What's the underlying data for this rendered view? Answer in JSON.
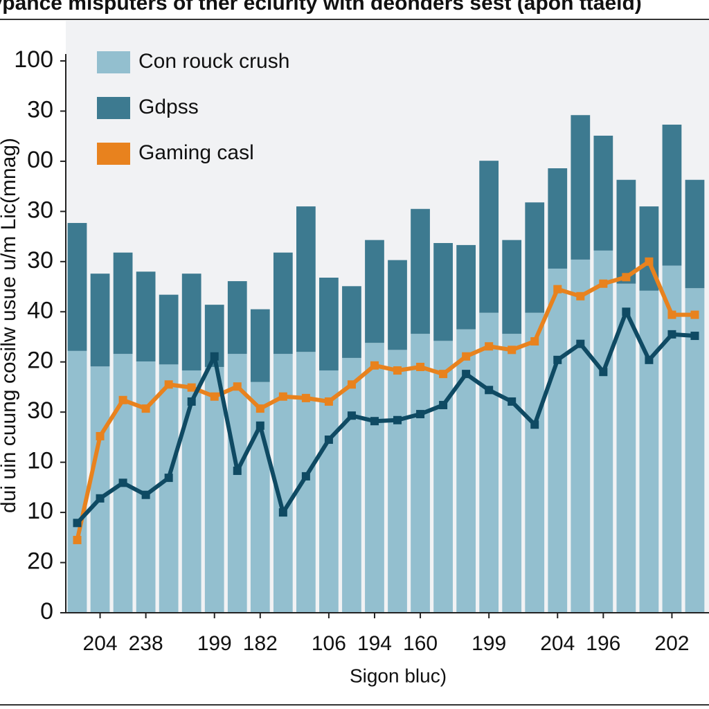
{
  "chart_data": {
    "type": "bar",
    "title": "sevpance misputers of ther eclurity with deonders sest (apon ttaeld)",
    "ylabel": "dui uin cuung cosilw usue u/m Lic(mnag)",
    "xlabel": "Sigon bluc)",
    "categories": [
      null,
      "204",
      null,
      "238",
      null,
      null,
      "199",
      null,
      "182",
      null,
      null,
      "106",
      null,
      "194",
      null,
      "160",
      null,
      null,
      "199",
      null,
      null,
      "204",
      null,
      "196",
      null,
      null,
      "202",
      null
    ],
    "ylim": [
      0,
      110
    ],
    "yticks": [
      0,
      {
        "value": 10,
        "label": "20"
      },
      {
        "value": 20,
        "label": "10"
      },
      {
        "value": 30,
        "label": "10"
      },
      {
        "value": 40,
        "label": "30"
      },
      {
        "value": 50,
        "label": "20"
      },
      {
        "value": 60,
        "label": "40"
      },
      {
        "value": 70,
        "label": "30"
      },
      {
        "value": 80,
        "label": "30"
      },
      {
        "value": 90,
        "label": "00"
      },
      {
        "value": 100,
        "label": "30"
      },
      {
        "value": 110,
        "label": "100"
      }
    ],
    "stacked": true,
    "legend": "upper left",
    "series": [
      {
        "name": "Con rouck crush",
        "type": "bar",
        "color": "#93bfcf",
        "values": [
          52.2,
          49.1,
          51.6,
          50.1,
          49.5,
          48.3,
          49,
          51.6,
          46,
          51.6,
          52,
          48.3,
          50.8,
          53.8,
          52.4,
          55.6,
          54.2,
          56.5,
          59.8,
          55.6,
          59.8,
          68.6,
          70.4,
          72.2,
          65.6,
          64.2,
          69.2,
          64.7
        ]
      },
      {
        "name": "Gdpss",
        "type": "bar",
        "color": "#3d7a90",
        "values": [
          25.5,
          18.5,
          20.2,
          17.9,
          13.9,
          19.3,
          12.4,
          14.5,
          14.5,
          20.2,
          29,
          18.5,
          14.3,
          20.5,
          17.9,
          24.9,
          19.5,
          16.8,
          30.3,
          18.7,
          22,
          20,
          28.8,
          22.9,
          20.7,
          16.8,
          28.1,
          21.6
        ]
      },
      {
        "name": "Gaming casl",
        "type": "line",
        "color": "#e8821e",
        "values": [
          14.5,
          35.2,
          42.4,
          40.7,
          45.5,
          44.9,
          43.1,
          45.1,
          40.7,
          43.1,
          42.8,
          42.1,
          45.5,
          49.3,
          48.3,
          49,
          47.6,
          51.1,
          53.1,
          52.4,
          54.1,
          64.5,
          63.1,
          65.6,
          66.9,
          70,
          59.4,
          59.4
        ]
      },
      {
        "type": "line",
        "color": "#0f4a63",
        "values": [
          17.9,
          22.8,
          25.9,
          23.5,
          26.9,
          42.1,
          51.1,
          28.3,
          37.3,
          20,
          27.2,
          34.5,
          39.3,
          38.2,
          38.4,
          39.6,
          41.4,
          47.6,
          44.4,
          42.1,
          37.5,
          50.4,
          53.6,
          48,
          60,
          50.4,
          55.5,
          55.2
        ]
      }
    ]
  }
}
